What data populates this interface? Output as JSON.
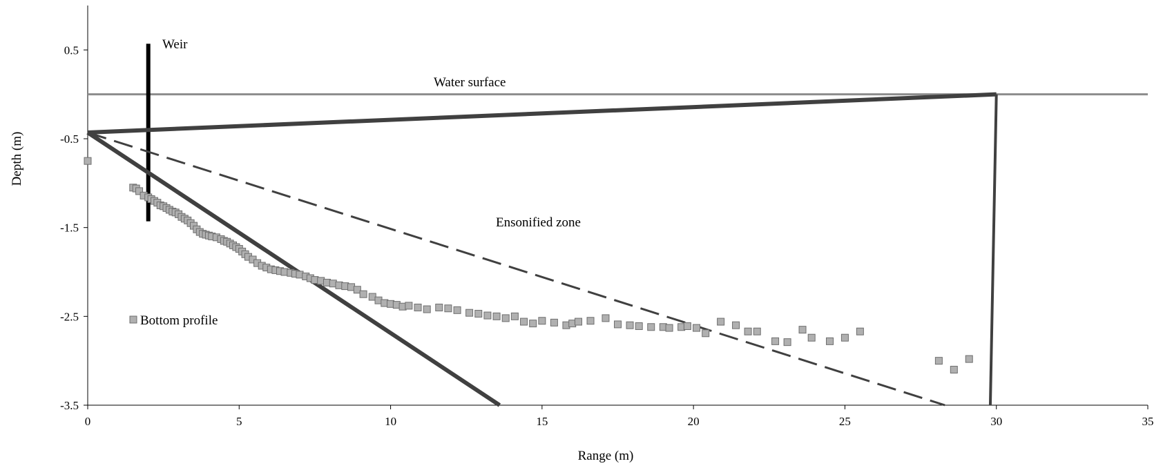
{
  "chart_data": {
    "type": "scatter",
    "xlabel": "Range (m)",
    "ylabel": "Depth (m)",
    "xlim": [
      0,
      35
    ],
    "ylim": [
      -3.5,
      1.0
    ],
    "x_ticks": [
      0,
      5,
      10,
      15,
      20,
      25,
      30,
      35
    ],
    "x_tick_labels": [
      "0",
      "5",
      "10",
      "15",
      "20",
      "25",
      "30",
      "35"
    ],
    "y_ticks": [
      0.5,
      -0.5,
      -1.5,
      -2.5,
      -3.5
    ],
    "y_tick_labels": [
      "0.5",
      "-0.5",
      "-1.5",
      "-2.5",
      "-3.5"
    ],
    "grid": false,
    "annotations": [
      {
        "id": "weir",
        "text": "Weir",
        "x": 2.5,
        "y": 0.55
      },
      {
        "id": "water-surface",
        "text": "Water surface",
        "x": 11.8,
        "y": 0.13
      },
      {
        "id": "ensonified-zone",
        "text": "Ensonified zone",
        "x": 13.5,
        "y": -1.45
      },
      {
        "id": "bottom-profile-legend",
        "text": "Bottom profile",
        "x": 1.7,
        "y": -2.55
      }
    ],
    "lines": [
      {
        "id": "water-surface-line",
        "style": "solid",
        "color": "#8c8c8c",
        "width": 3,
        "points": [
          [
            0,
            0
          ],
          [
            35,
            0
          ]
        ]
      },
      {
        "id": "weir-line",
        "style": "solid",
        "color": "#000000",
        "width": 6,
        "points": [
          [
            2.0,
            0.57
          ],
          [
            2.0,
            -1.43
          ]
        ]
      },
      {
        "id": "beam-upper-edge",
        "style": "solid",
        "color": "#404040",
        "width": 6,
        "points": [
          [
            0,
            -0.43
          ],
          [
            30,
            0
          ]
        ]
      },
      {
        "id": "beam-lower-edge",
        "style": "solid",
        "color": "#404040",
        "width": 6,
        "points": [
          [
            0,
            -0.43
          ],
          [
            13.6,
            -3.5
          ]
        ]
      },
      {
        "id": "beam-center",
        "style": "dashed",
        "color": "#404040",
        "width": 3,
        "points": [
          [
            0,
            -0.43
          ],
          [
            28.3,
            -3.5
          ]
        ]
      },
      {
        "id": "range-limit",
        "style": "solid",
        "color": "#404040",
        "width": 4,
        "points": [
          [
            30,
            0
          ],
          [
            29.8,
            -3.5
          ]
        ]
      }
    ],
    "series": [
      {
        "name": "Bottom profile",
        "marker": "square",
        "color": "#b0b0b0",
        "edge_color": "#6e6e6e",
        "points": [
          [
            0.0,
            -0.75
          ],
          [
            1.5,
            -1.05
          ],
          [
            1.6,
            -1.06
          ],
          [
            1.7,
            -1.09
          ],
          [
            1.85,
            -1.14
          ],
          [
            2.0,
            -1.16
          ],
          [
            2.1,
            -1.18
          ],
          [
            2.2,
            -1.2
          ],
          [
            2.3,
            -1.22
          ],
          [
            2.4,
            -1.25
          ],
          [
            2.5,
            -1.26
          ],
          [
            2.6,
            -1.28
          ],
          [
            2.7,
            -1.3
          ],
          [
            2.8,
            -1.32
          ],
          [
            2.9,
            -1.33
          ],
          [
            3.0,
            -1.35
          ],
          [
            3.1,
            -1.38
          ],
          [
            3.2,
            -1.4
          ],
          [
            3.3,
            -1.42
          ],
          [
            3.4,
            -1.45
          ],
          [
            3.5,
            -1.48
          ],
          [
            3.6,
            -1.52
          ],
          [
            3.7,
            -1.55
          ],
          [
            3.8,
            -1.57
          ],
          [
            3.9,
            -1.58
          ],
          [
            4.0,
            -1.59
          ],
          [
            4.1,
            -1.6
          ],
          [
            4.25,
            -1.61
          ],
          [
            4.4,
            -1.63
          ],
          [
            4.5,
            -1.65
          ],
          [
            4.6,
            -1.66
          ],
          [
            4.7,
            -1.68
          ],
          [
            4.8,
            -1.7
          ],
          [
            4.9,
            -1.72
          ],
          [
            5.0,
            -1.74
          ],
          [
            5.1,
            -1.77
          ],
          [
            5.2,
            -1.8
          ],
          [
            5.3,
            -1.83
          ],
          [
            5.45,
            -1.86
          ],
          [
            5.6,
            -1.9
          ],
          [
            5.75,
            -1.93
          ],
          [
            5.9,
            -1.95
          ],
          [
            6.05,
            -1.97
          ],
          [
            6.2,
            -1.98
          ],
          [
            6.35,
            -1.99
          ],
          [
            6.5,
            -2.0
          ],
          [
            6.7,
            -2.01
          ],
          [
            6.85,
            -2.02
          ],
          [
            7.0,
            -2.03
          ],
          [
            7.2,
            -2.05
          ],
          [
            7.35,
            -2.07
          ],
          [
            7.5,
            -2.09
          ],
          [
            7.7,
            -2.1
          ],
          [
            7.9,
            -2.12
          ],
          [
            8.1,
            -2.13
          ],
          [
            8.3,
            -2.15
          ],
          [
            8.5,
            -2.16
          ],
          [
            8.7,
            -2.17
          ],
          [
            8.9,
            -2.2
          ],
          [
            9.1,
            -2.25
          ],
          [
            9.4,
            -2.28
          ],
          [
            9.6,
            -2.32
          ],
          [
            9.8,
            -2.35
          ],
          [
            10.0,
            -2.36
          ],
          [
            10.2,
            -2.37
          ],
          [
            10.4,
            -2.39
          ],
          [
            10.6,
            -2.38
          ],
          [
            10.9,
            -2.4
          ],
          [
            11.2,
            -2.42
          ],
          [
            11.6,
            -2.4
          ],
          [
            11.9,
            -2.41
          ],
          [
            12.2,
            -2.43
          ],
          [
            12.6,
            -2.46
          ],
          [
            12.9,
            -2.47
          ],
          [
            13.2,
            -2.49
          ],
          [
            13.5,
            -2.5
          ],
          [
            13.8,
            -2.52
          ],
          [
            14.1,
            -2.5
          ],
          [
            14.4,
            -2.56
          ],
          [
            14.7,
            -2.58
          ],
          [
            15.0,
            -2.55
          ],
          [
            15.4,
            -2.57
          ],
          [
            15.8,
            -2.6
          ],
          [
            16.0,
            -2.58
          ],
          [
            16.2,
            -2.56
          ],
          [
            16.6,
            -2.55
          ],
          [
            17.1,
            -2.52
          ],
          [
            17.5,
            -2.59
          ],
          [
            17.9,
            -2.6
          ],
          [
            18.2,
            -2.61
          ],
          [
            18.6,
            -2.62
          ],
          [
            19.0,
            -2.62
          ],
          [
            19.2,
            -2.63
          ],
          [
            19.6,
            -2.62
          ],
          [
            19.8,
            -2.61
          ],
          [
            20.1,
            -2.63
          ],
          [
            20.4,
            -2.69
          ],
          [
            20.9,
            -2.56
          ],
          [
            21.4,
            -2.6
          ],
          [
            21.8,
            -2.67
          ],
          [
            22.1,
            -2.67
          ],
          [
            22.7,
            -2.78
          ],
          [
            23.1,
            -2.79
          ],
          [
            23.6,
            -2.65
          ],
          [
            23.9,
            -2.74
          ],
          [
            24.5,
            -2.78
          ],
          [
            25.0,
            -2.74
          ],
          [
            25.5,
            -2.67
          ],
          [
            28.1,
            -3.0
          ],
          [
            28.6,
            -3.1
          ],
          [
            29.1,
            -2.98
          ]
        ]
      }
    ]
  }
}
